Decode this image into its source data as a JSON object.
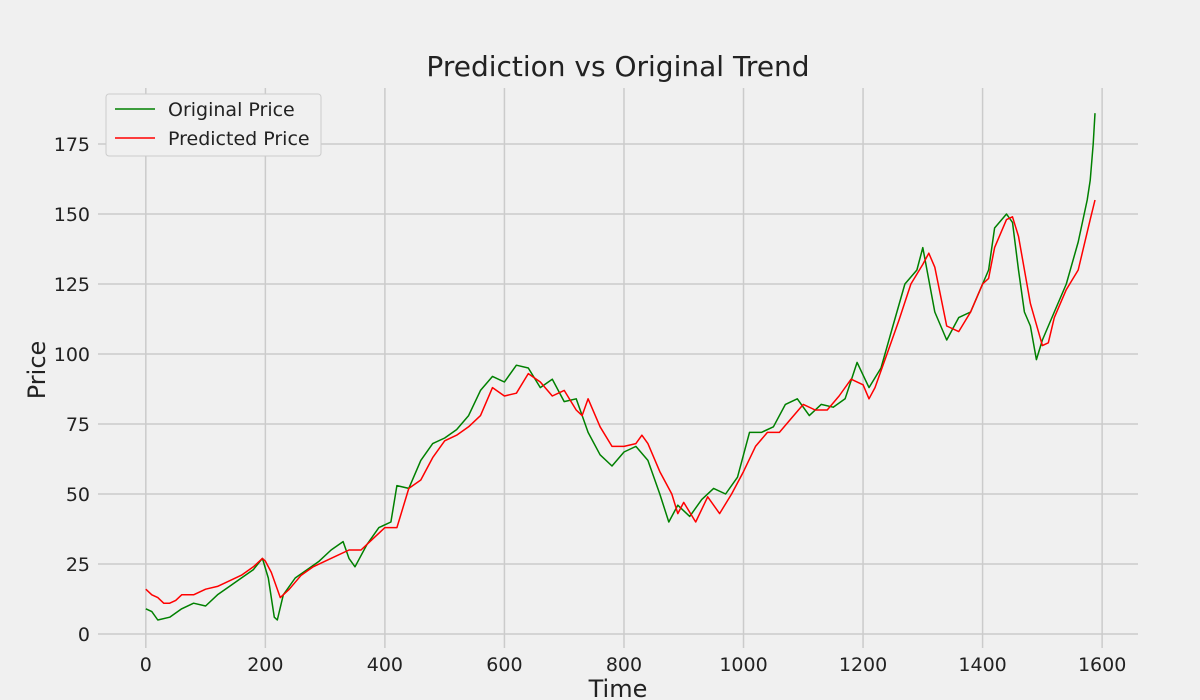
{
  "chart_data": {
    "type": "line",
    "title": "Prediction vs Original Trend",
    "xlabel": "Time",
    "ylabel": "Price",
    "xlim": [
      -80,
      1660
    ],
    "ylim": [
      -5,
      195
    ],
    "xticks": [
      0,
      200,
      400,
      600,
      800,
      1000,
      1200,
      1400,
      1600
    ],
    "yticks": [
      0,
      25,
      50,
      75,
      100,
      125,
      150,
      175
    ],
    "grid": true,
    "legend": "top-left",
    "series": [
      {
        "name": "Original Price",
        "color": "#008000",
        "x": [
          0,
          10,
          20,
          40,
          60,
          80,
          100,
          120,
          140,
          160,
          180,
          195,
          205,
          215,
          220,
          230,
          250,
          270,
          290,
          310,
          330,
          340,
          350,
          370,
          390,
          410,
          420,
          440,
          460,
          480,
          500,
          520,
          540,
          560,
          580,
          600,
          620,
          640,
          660,
          680,
          700,
          720,
          740,
          760,
          780,
          800,
          820,
          840,
          860,
          875,
          890,
          910,
          930,
          950,
          970,
          990,
          1010,
          1030,
          1050,
          1070,
          1090,
          1110,
          1130,
          1150,
          1170,
          1190,
          1210,
          1230,
          1250,
          1270,
          1290,
          1300,
          1320,
          1340,
          1360,
          1380,
          1400,
          1410,
          1420,
          1440,
          1450,
          1460,
          1470,
          1480,
          1490,
          1500,
          1520,
          1540,
          1560,
          1570,
          1575,
          1580,
          1585,
          1588
        ],
        "y": [
          9,
          8,
          5,
          6,
          9,
          11,
          10,
          14,
          17,
          20,
          23,
          27,
          20,
          6,
          5,
          14,
          20,
          23,
          26,
          30,
          33,
          27,
          24,
          32,
          38,
          40,
          53,
          52,
          62,
          68,
          70,
          73,
          78,
          87,
          92,
          90,
          96,
          95,
          88,
          91,
          83,
          84,
          72,
          64,
          60,
          65,
          67,
          62,
          50,
          40,
          46,
          42,
          48,
          52,
          50,
          56,
          72,
          72,
          74,
          82,
          84,
          78,
          82,
          81,
          84,
          97,
          88,
          95,
          110,
          125,
          130,
          138,
          115,
          105,
          113,
          115,
          125,
          130,
          145,
          150,
          147,
          130,
          115,
          110,
          98,
          105,
          115,
          125,
          140,
          150,
          155,
          162,
          175,
          186
        ]
      },
      {
        "name": "Predicted Price",
        "color": "#ff0000",
        "x": [
          0,
          10,
          20,
          30,
          40,
          50,
          60,
          80,
          100,
          120,
          140,
          160,
          180,
          195,
          200,
          210,
          225,
          240,
          260,
          280,
          300,
          320,
          340,
          360,
          380,
          400,
          420,
          440,
          460,
          480,
          500,
          520,
          540,
          560,
          580,
          600,
          620,
          640,
          660,
          680,
          700,
          720,
          730,
          740,
          760,
          780,
          800,
          820,
          830,
          840,
          860,
          880,
          890,
          900,
          920,
          940,
          960,
          980,
          1000,
          1020,
          1040,
          1060,
          1080,
          1100,
          1120,
          1140,
          1160,
          1180,
          1200,
          1210,
          1220,
          1240,
          1260,
          1280,
          1300,
          1310,
          1320,
          1340,
          1360,
          1380,
          1400,
          1410,
          1420,
          1440,
          1450,
          1460,
          1480,
          1500,
          1510,
          1520,
          1540,
          1560,
          1580,
          1588
        ],
        "y": [
          16,
          14,
          13,
          11,
          11,
          12,
          14,
          14,
          16,
          17,
          19,
          21,
          24,
          27,
          26,
          22,
          13,
          16,
          21,
          24,
          26,
          28,
          30,
          30,
          34,
          38,
          38,
          52,
          55,
          63,
          69,
          71,
          74,
          78,
          88,
          85,
          86,
          93,
          90,
          85,
          87,
          80,
          78,
          84,
          74,
          67,
          67,
          68,
          71,
          68,
          58,
          50,
          43,
          47,
          40,
          49,
          43,
          50,
          58,
          67,
          72,
          72,
          77,
          82,
          80,
          80,
          85,
          91,
          89,
          84,
          88,
          100,
          112,
          125,
          132,
          136,
          131,
          110,
          108,
          115,
          125,
          127,
          138,
          148,
          149,
          142,
          118,
          103,
          104,
          113,
          123,
          130,
          148,
          155
        ]
      }
    ]
  }
}
